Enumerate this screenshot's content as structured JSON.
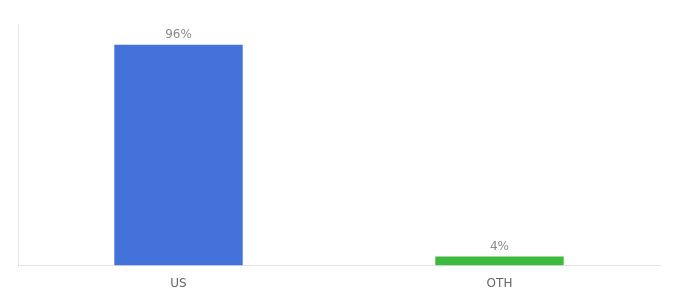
{
  "chart_data": {
    "type": "bar",
    "categories": [
      "US",
      "OTH"
    ],
    "values": [
      96,
      4
    ],
    "value_labels": [
      "96%",
      "4%"
    ],
    "data_labels": true,
    "colors": [
      "#4472db",
      "#3dba3d"
    ],
    "ylim": [
      0,
      105
    ],
    "tick_labels": "x",
    "grid": false
  }
}
